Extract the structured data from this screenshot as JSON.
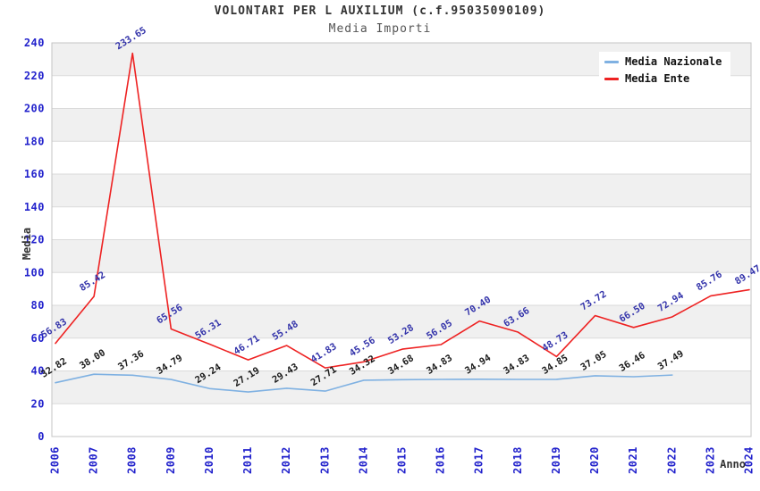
{
  "title": "VOLONTARI PER L AUXILIUM (c.f.95035090109)",
  "subtitle": "Media Importi",
  "y_axis_title": "Media",
  "x_axis_title": "Anno",
  "colors": {
    "tick_label": "#2222cc",
    "band_gray": "#f0f0f0",
    "gridline": "#dadada",
    "plot_border": "#c4c4c4",
    "nazionale_line": "#7fb1e2",
    "ente_line": "#ee2222",
    "nazionale_label": "#1a1a1a",
    "ente_label": "#3333aa"
  },
  "chart_data": {
    "type": "line",
    "title": "VOLONTARI PER L AUXILIUM (c.f.95035090109)",
    "subtitle": "Media Importi",
    "xlabel": "Anno",
    "ylabel": "Media",
    "ylim": [
      0,
      240
    ],
    "y_step": 20,
    "grid": true,
    "band_color": "#f0f0f0",
    "legend_position": "top-right",
    "x": [
      2006,
      2007,
      2008,
      2009,
      2010,
      2011,
      2012,
      2013,
      2014,
      2015,
      2016,
      2017,
      2018,
      2019,
      2020,
      2021,
      2022,
      2023,
      2024
    ],
    "series": [
      {
        "name": "Media Nazionale",
        "color": "#7fb1e2",
        "label_color": "#1a1a1a",
        "values": [
          32.82,
          38.0,
          37.36,
          34.79,
          29.24,
          27.19,
          29.43,
          27.71,
          34.32,
          34.68,
          34.83,
          34.94,
          34.83,
          34.85,
          37.05,
          36.46,
          37.49,
          null,
          null
        ]
      },
      {
        "name": "Media Ente",
        "color": "#ee2222",
        "label_color": "#3333aa",
        "values": [
          56.83,
          85.42,
          233.65,
          65.56,
          56.31,
          46.71,
          55.48,
          41.83,
          45.56,
          53.28,
          56.05,
          70.4,
          63.66,
          48.73,
          73.72,
          66.5,
          72.94,
          85.76,
          89.47
        ]
      }
    ]
  }
}
